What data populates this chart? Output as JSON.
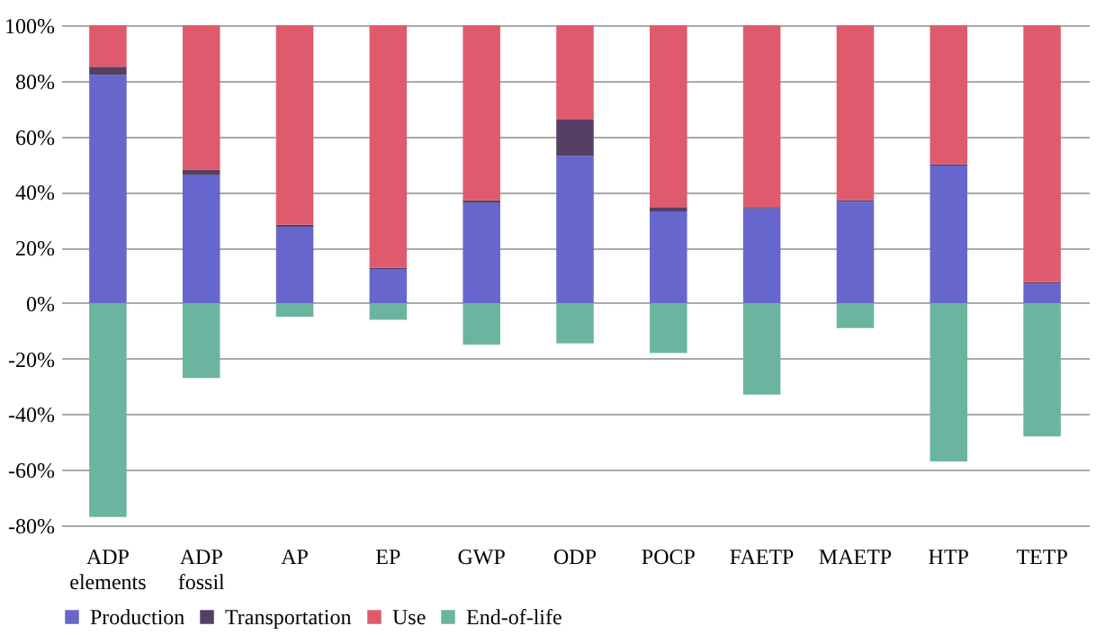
{
  "chart_data": {
    "type": "bar",
    "stacked": true,
    "categories": [
      "ADP elements",
      "ADP fossil",
      "AP",
      "EP",
      "GWP",
      "ODP",
      "POCP",
      "FAETP",
      "MAETP",
      "HTP",
      "TETP"
    ],
    "series": [
      {
        "name": "Production",
        "color": "#6666cc",
        "values": [
          82,
          46,
          27.5,
          12,
          36,
          53,
          33,
          34,
          36.5,
          49.5,
          7
        ]
      },
      {
        "name": "Transportation",
        "color": "#553f66",
        "values": [
          3,
          2,
          0.7,
          0.7,
          1,
          13,
          1.5,
          0.5,
          0.5,
          0.5,
          0.5
        ]
      },
      {
        "name": "Use",
        "color": "#e05a6e",
        "values": [
          15,
          52,
          71.8,
          87.3,
          63,
          34,
          65.5,
          65.5,
          63,
          50,
          92.5
        ]
      },
      {
        "name": "End-of-life",
        "color": "#6bb5a0",
        "values": [
          -77,
          -27,
          -5,
          -6,
          -15,
          -14.5,
          -18,
          -33,
          -9,
          -57,
          -48
        ]
      }
    ],
    "ylim": [
      -80,
      100
    ],
    "yticks": [
      {
        "value": -80,
        "label": "-80%"
      },
      {
        "value": -60,
        "label": "-60%"
      },
      {
        "value": -40,
        "label": "-40%"
      },
      {
        "value": -20,
        "label": "-20%"
      },
      {
        "value": 0,
        "label": "0%"
      },
      {
        "value": 20,
        "label": "20%"
      },
      {
        "value": 40,
        "label": "40%"
      },
      {
        "value": 60,
        "label": "60%"
      },
      {
        "value": 80,
        "label": "80%"
      },
      {
        "value": 100,
        "label": "100%"
      }
    ],
    "grid": "y",
    "legend": "bottom"
  }
}
